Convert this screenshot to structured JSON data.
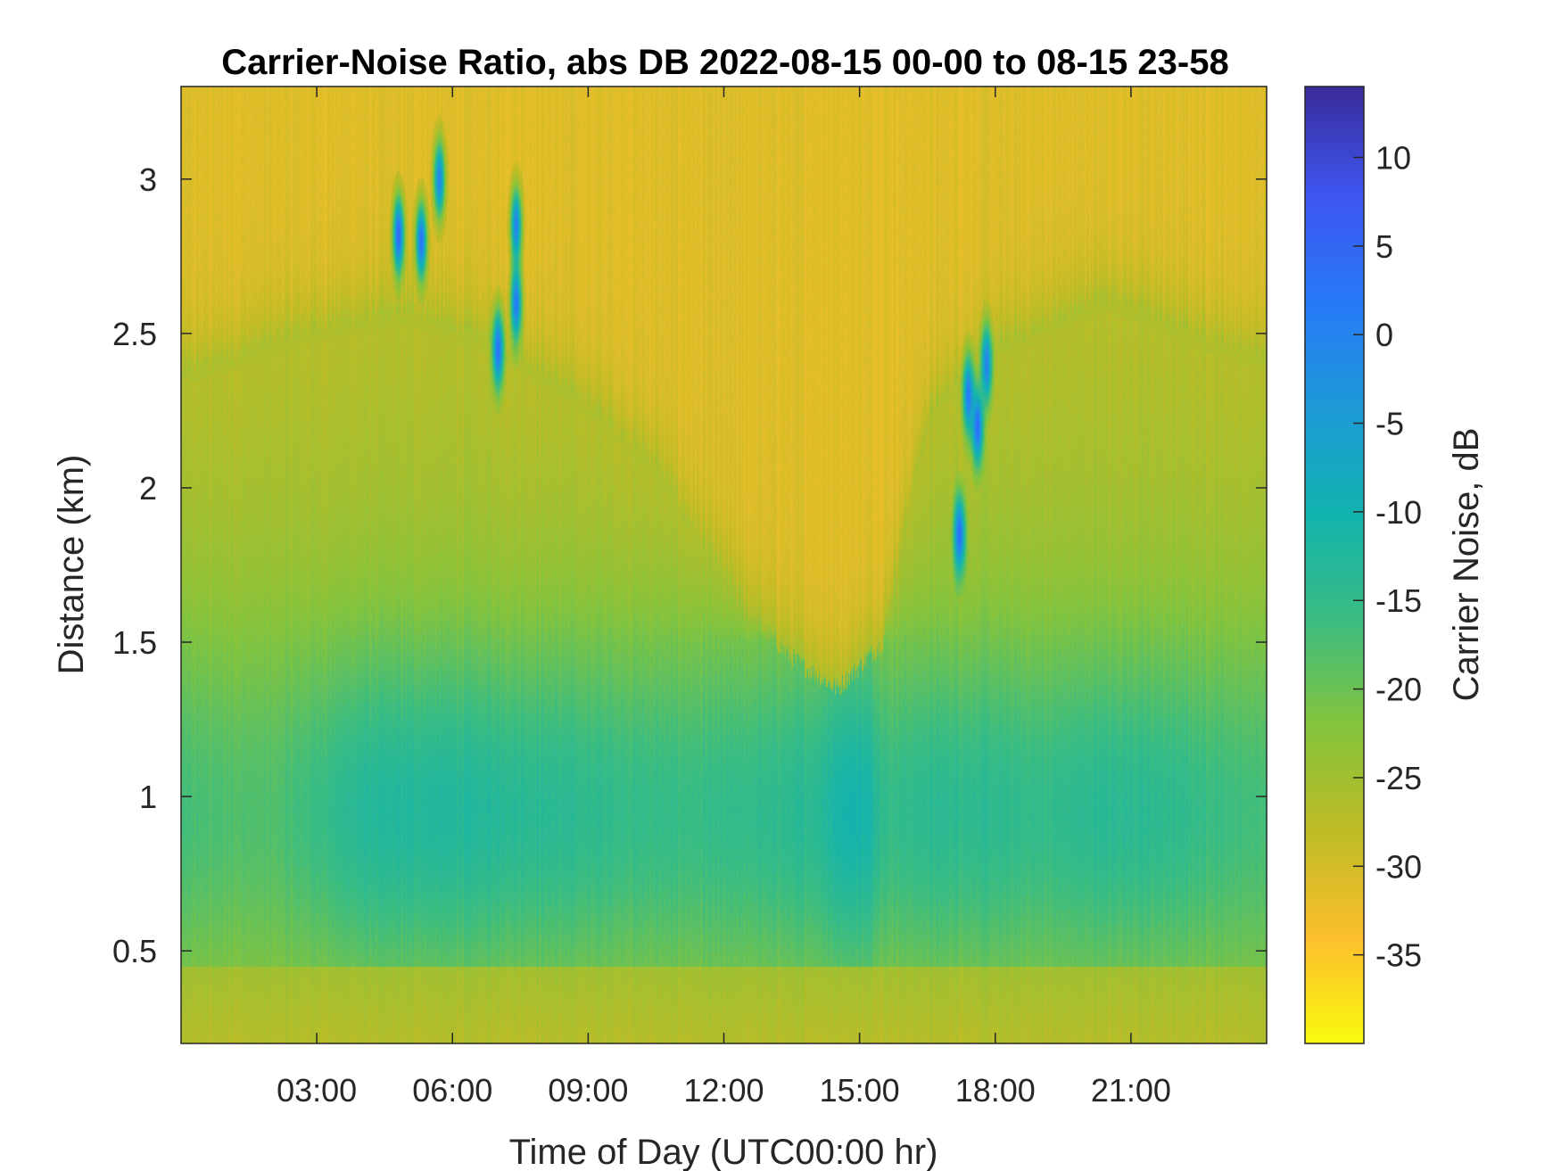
{
  "chart_data": {
    "type": "heatmap",
    "title": "Carrier-Noise Ratio, abs DB 2022-08-15 00-00 to 08-15 23-58",
    "xlabel": "Time of Day (UTC00:00 hr)",
    "ylabel": "Distance (km)",
    "colorbar_label": "Carrier Noise, dB",
    "x_unit": "hour of day",
    "xlim": [
      0,
      24
    ],
    "ylim": [
      0.2,
      3.3
    ],
    "clim": [
      -40,
      14
    ],
    "colormap": "parula",
    "colormap_stops": [
      "#f9fb0e",
      "#fdbf2d",
      "#bfbc26",
      "#85c43d",
      "#3bbd82",
      "#12b3b0",
      "#1e9ad8",
      "#2879f9",
      "#3e55ef",
      "#3b2c9c"
    ],
    "x_ticks": [
      {
        "value": 3,
        "label": "03:00"
      },
      {
        "value": 6,
        "label": "06:00"
      },
      {
        "value": 9,
        "label": "09:00"
      },
      {
        "value": 12,
        "label": "12:00"
      },
      {
        "value": 15,
        "label": "15:00"
      },
      {
        "value": 18,
        "label": "18:00"
      },
      {
        "value": 21,
        "label": "21:00"
      }
    ],
    "y_ticks": [
      {
        "value": 0.5,
        "label": "0.5"
      },
      {
        "value": 1,
        "label": "1"
      },
      {
        "value": 1.5,
        "label": "1.5"
      },
      {
        "value": 2,
        "label": "2"
      },
      {
        "value": 2.5,
        "label": "2.5"
      },
      {
        "value": 3,
        "label": "3"
      }
    ],
    "colorbar_ticks": [
      {
        "value": 10,
        "label": "10"
      },
      {
        "value": 5,
        "label": "5"
      },
      {
        "value": 0,
        "label": "0"
      },
      {
        "value": -5,
        "label": "-5"
      },
      {
        "value": -10,
        "label": "-10"
      },
      {
        "value": -15,
        "label": "-15"
      },
      {
        "value": -20,
        "label": "-20"
      },
      {
        "value": -25,
        "label": "-25"
      },
      {
        "value": -30,
        "label": "-30"
      },
      {
        "value": -35,
        "label": "-35"
      }
    ],
    "background_value": -31,
    "boundary_layer_top_km": {
      "hours": [
        0,
        3,
        5,
        7,
        9,
        10.5,
        11.5,
        12.5,
        13.5,
        14.5,
        15.5,
        16.5,
        17.5,
        19,
        20.5,
        22,
        24
      ],
      "top": [
        2.35,
        2.5,
        2.55,
        2.45,
        2.25,
        2.05,
        1.8,
        1.6,
        1.45,
        1.35,
        1.5,
        2.2,
        2.4,
        2.5,
        2.6,
        2.5,
        2.4
      ]
    },
    "core_cnr_db": {
      "hours": [
        0,
        2,
        4,
        5.5,
        7,
        8.5,
        10,
        11.5,
        13,
        14,
        14.7,
        15.2,
        15.6,
        16.5,
        17.5,
        19,
        20.5,
        22,
        24
      ],
      "values": [
        -17,
        -18,
        -13,
        -12.5,
        -13,
        -14,
        -15,
        -15.5,
        -14.5,
        -13.5,
        -10,
        -11,
        -15,
        -14,
        -14,
        -15,
        -13.5,
        -14.5,
        -17
      ]
    },
    "strong_returns": [
      {
        "hour": 4.8,
        "km": 2.82,
        "db": 5
      },
      {
        "hour": 5.3,
        "km": 2.8,
        "db": 3
      },
      {
        "hour": 5.7,
        "km": 3.0,
        "db": 0
      },
      {
        "hour": 7.0,
        "km": 2.45,
        "db": 3
      },
      {
        "hour": 7.4,
        "km": 2.6,
        "db": 2
      },
      {
        "hour": 7.4,
        "km": 2.85,
        "db": 0
      },
      {
        "hour": 17.2,
        "km": 1.85,
        "db": 4
      },
      {
        "hour": 17.4,
        "km": 2.3,
        "db": 2
      },
      {
        "hour": 17.6,
        "km": 2.2,
        "db": 4
      },
      {
        "hour": 17.8,
        "km": 2.4,
        "db": 0
      }
    ]
  }
}
